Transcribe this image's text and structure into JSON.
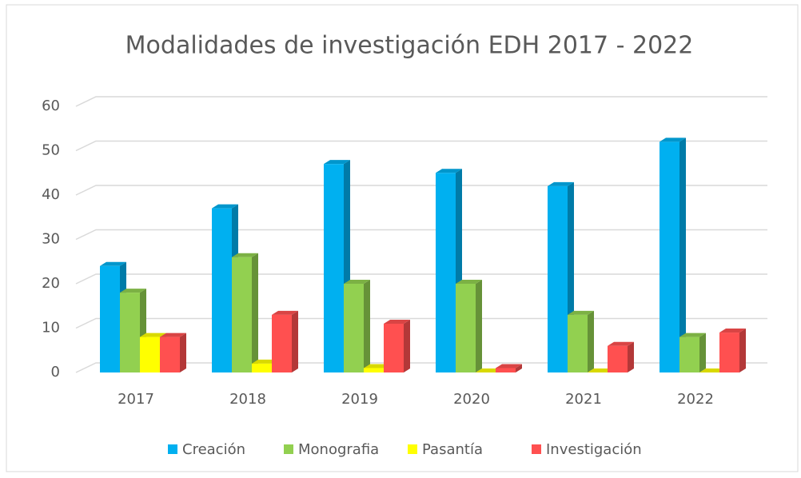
{
  "chart_data": {
    "type": "bar3d",
    "title": "Modalidades de investigación EDH 2017 - 2022",
    "categories": [
      "2017",
      "2018",
      "2019",
      "2020",
      "2021",
      "2022"
    ],
    "series": [
      {
        "name": "Creación",
        "color": "#00b0f0",
        "values": [
          24,
          37,
          47,
          45,
          42,
          52
        ]
      },
      {
        "name": "Monografia",
        "color": "#92d050",
        "values": [
          18,
          26,
          20,
          20,
          13,
          8
        ]
      },
      {
        "name": "Pasantía",
        "color": "#ffff00",
        "values": [
          8,
          2,
          1,
          0,
          0,
          0
        ]
      },
      {
        "name": "Investigación",
        "color": "#ff5050",
        "values": [
          8,
          13,
          11,
          1,
          6,
          9
        ]
      }
    ],
    "ylim": [
      0,
      60
    ],
    "yticks": [
      0,
      10,
      20,
      30,
      40,
      50,
      60
    ],
    "grid": true,
    "legend": "bottom"
  }
}
